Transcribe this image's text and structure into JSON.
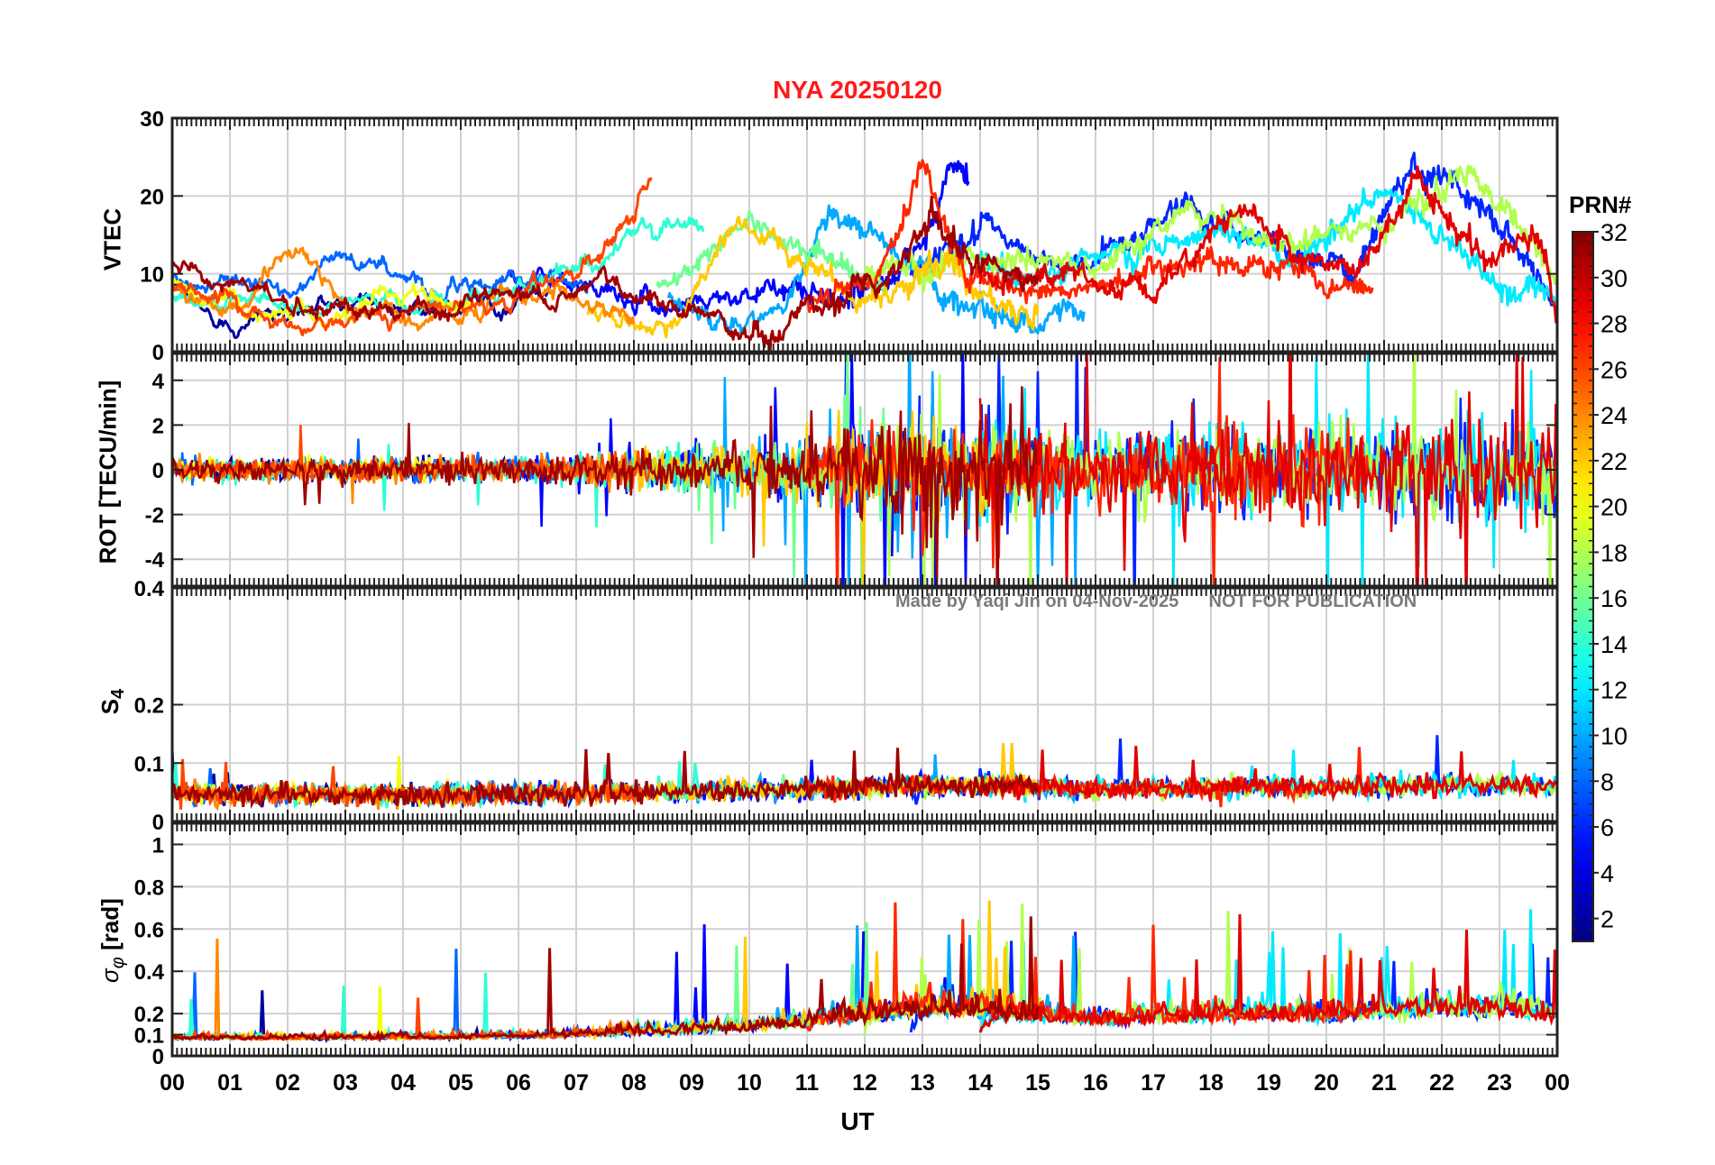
{
  "chart_data": {
    "type": "line",
    "title": "NYA   20250120",
    "xlabel": "UT",
    "x_range": [
      0,
      24
    ],
    "x_tick_labels": [
      "00",
      "01",
      "02",
      "03",
      "04",
      "05",
      "06",
      "07",
      "08",
      "09",
      "10",
      "11",
      "12",
      "13",
      "14",
      "15",
      "16",
      "17",
      "18",
      "19",
      "20",
      "21",
      "22",
      "23",
      "00"
    ],
    "credit_text": "Made by Yaqi Jin on 04-Nov-2025      NOT FOR PUBLICATION",
    "colorbar": {
      "title": "PRN#",
      "range": [
        1,
        32
      ],
      "tick_labels": [
        "2",
        "4",
        "6",
        "8",
        "10",
        "12",
        "14",
        "16",
        "18",
        "20",
        "22",
        "24",
        "26",
        "28",
        "30",
        "32"
      ],
      "colormap": "jet"
    },
    "panels": [
      {
        "name": "vtec",
        "ylabel": "VTEC",
        "ylim": [
          0,
          30
        ],
        "yticks": [
          0,
          10,
          20,
          30
        ],
        "ytick_labels": [
          "0",
          "10",
          "20",
          "30"
        ],
        "series": [
          {
            "prn": 2,
            "start": 0.0,
            "end": 6.5,
            "knots": [
              [
                0,
                8
              ],
              [
                0.8,
                4
              ],
              [
                2,
                5
              ],
              [
                3.4,
                7
              ],
              [
                4.8,
                5
              ],
              [
                6.5,
                8
              ]
            ]
          },
          {
            "prn": 5,
            "start": 5.8,
            "end": 13.8,
            "knots": [
              [
                5.8,
                10
              ],
              [
                7,
                8
              ],
              [
                8.5,
                6
              ],
              [
                10,
                8
              ],
              [
                11.5,
                7
              ],
              [
                13,
                12
              ],
              [
                13.5,
                24
              ],
              [
                13.8,
                22
              ]
            ]
          },
          {
            "prn": 6,
            "start": 12.8,
            "end": 24.0,
            "knots": [
              [
                12.8,
                10
              ],
              [
                14,
                16
              ],
              [
                15.5,
                10
              ],
              [
                17.5,
                19
              ],
              [
                19,
                14
              ],
              [
                20.5,
                11
              ],
              [
                21.5,
                25
              ],
              [
                22.5,
                20
              ],
              [
                23.5,
                12
              ],
              [
                24,
                7
              ]
            ]
          },
          {
            "prn": 8,
            "start": 0.0,
            "end": 7.2,
            "knots": [
              [
                0,
                9
              ],
              [
                2.2,
                8
              ],
              [
                3,
                13
              ],
              [
                4,
                9
              ],
              [
                5.2,
                8
              ],
              [
                6,
                10
              ],
              [
                7.2,
                9
              ]
            ]
          },
          {
            "prn": 10,
            "start": 8.6,
            "end": 15.8,
            "knots": [
              [
                8.6,
                6
              ],
              [
                9.5,
                3
              ],
              [
                10.5,
                5
              ],
              [
                11.5,
                18
              ],
              [
                12.5,
                13
              ],
              [
                13.2,
                9
              ],
              [
                14,
                5
              ],
              [
                15,
                4
              ],
              [
                15.8,
                6
              ]
            ]
          },
          {
            "prn": 12,
            "start": 14.0,
            "end": 24.0,
            "knots": [
              [
                14,
                12
              ],
              [
                15,
                9
              ],
              [
                16.5,
                13
              ],
              [
                18,
                16
              ],
              [
                19.5,
                12
              ],
              [
                21,
                20
              ],
              [
                22,
                15
              ],
              [
                23.2,
                8
              ],
              [
                24,
                6
              ]
            ]
          },
          {
            "prn": 14,
            "start": 0.0,
            "end": 9.2,
            "knots": [
              [
                0,
                7
              ],
              [
                1.8,
                6
              ],
              [
                3.5,
                6
              ],
              [
                5.5,
                7
              ],
              [
                7,
                10
              ],
              [
                8.2,
                16
              ],
              [
                9.2,
                16
              ]
            ]
          },
          {
            "prn": 16,
            "start": 8.4,
            "end": 12.4,
            "knots": [
              [
                8.4,
                8
              ],
              [
                9.2,
                12
              ],
              [
                10,
                17
              ],
              [
                11,
                14
              ],
              [
                12,
                9
              ],
              [
                12.4,
                7
              ]
            ]
          },
          {
            "prn": 18,
            "start": 12.0,
            "end": 24.0,
            "knots": [
              [
                12,
                10
              ],
              [
                14,
                12
              ],
              [
                16,
                11
              ],
              [
                17.8,
                18
              ],
              [
                19.5,
                14
              ],
              [
                21,
                17
              ],
              [
                22.5,
                23
              ],
              [
                23.5,
                15
              ],
              [
                24,
                9
              ]
            ]
          },
          {
            "prn": 20,
            "start": 0.0,
            "end": 5.2,
            "knots": [
              [
                0,
                9
              ],
              [
                1.5,
                5
              ],
              [
                3,
                4
              ],
              [
                4.2,
                8
              ],
              [
                5.2,
                6
              ]
            ]
          },
          {
            "prn": 22,
            "start": 7.2,
            "end": 15.0,
            "knots": [
              [
                7.2,
                5
              ],
              [
                8.6,
                3
              ],
              [
                9.8,
                17
              ],
              [
                11,
                11
              ],
              [
                12,
                6
              ],
              [
                13.5,
                12
              ],
              [
                14.5,
                6
              ],
              [
                15,
                4
              ]
            ]
          },
          {
            "prn": 24,
            "start": 0.0,
            "end": 8.0,
            "knots": [
              [
                0,
                8
              ],
              [
                1.2,
                5
              ],
              [
                2,
                14
              ],
              [
                3,
                5
              ],
              [
                5,
                5
              ],
              [
                6.5,
                7
              ],
              [
                8,
                6
              ]
            ]
          },
          {
            "prn": 26,
            "start": 0.0,
            "end": 8.3,
            "knots": [
              [
                0,
                9
              ],
              [
                2,
                4
              ],
              [
                4,
                5
              ],
              [
                6,
                7
              ],
              [
                7.4,
                11
              ],
              [
                8,
                18
              ],
              [
                8.3,
                22
              ]
            ]
          },
          {
            "prn": 27,
            "start": 11.0,
            "end": 20.8,
            "knots": [
              [
                11,
                6
              ],
              [
                12.2,
                9
              ],
              [
                13,
                24
              ],
              [
                13.8,
                9
              ],
              [
                15,
                7
              ],
              [
                16.5,
                9
              ],
              [
                17.8,
                12
              ],
              [
                19.5,
                10
              ],
              [
                20.8,
                8
              ]
            ]
          },
          {
            "prn": 29,
            "start": 14.0,
            "end": 24.0,
            "knots": [
              [
                14,
                10
              ],
              [
                15.8,
                9
              ],
              [
                17,
                7
              ],
              [
                18.5,
                20
              ],
              [
                19.5,
                13
              ],
              [
                20.5,
                10
              ],
              [
                21.6,
                22
              ],
              [
                22.8,
                12
              ],
              [
                23.6,
                15
              ],
              [
                24,
                5
              ]
            ]
          },
          {
            "prn": 31,
            "start": 0.0,
            "end": 15.0,
            "knots": [
              [
                0,
                11
              ],
              [
                2,
                6
              ],
              [
                4,
                5
              ],
              [
                6,
                7
              ],
              [
                7.5,
                9
              ],
              [
                9.5,
                4
              ],
              [
                10.5,
                0.5
              ],
              [
                11,
                6
              ],
              [
                12.5,
                10
              ],
              [
                13.2,
                17
              ],
              [
                14,
                11
              ],
              [
                15,
                10
              ]
            ]
          }
        ]
      },
      {
        "name": "rot",
        "ylabel": "ROT [TECU/min]",
        "ylim": [
          -5.2,
          5.2
        ],
        "yticks": [
          -4,
          -2,
          0,
          2,
          4
        ],
        "ytick_labels": [
          "-4",
          "-2",
          "0",
          "2",
          "4"
        ]
      },
      {
        "name": "s4",
        "ylabel": "S4",
        "ylim": [
          0,
          0.4
        ],
        "yticks": [
          0,
          0.1,
          0.2,
          0.4
        ],
        "ytick_labels": [
          "0",
          "0.1",
          "0.2",
          "0.4"
        ]
      },
      {
        "name": "sigma_phi",
        "ylabel": "σφ [rad]",
        "ylim": [
          0,
          1.1
        ],
        "yticks": [
          0,
          0.1,
          0.2,
          0.4,
          0.6,
          0.8,
          1
        ],
        "ytick_labels": [
          "0",
          "0.1",
          "0.2",
          "0.4",
          "0.6",
          "0.8",
          "1"
        ]
      }
    ],
    "activity_profile": [
      [
        0,
        0.5
      ],
      [
        6,
        0.6
      ],
      [
        8,
        1.0
      ],
      [
        10,
        1.3
      ],
      [
        11,
        1.7
      ],
      [
        13,
        2.6
      ],
      [
        14,
        2.4
      ],
      [
        16,
        1.6
      ],
      [
        18,
        2.2
      ],
      [
        20,
        2.0
      ],
      [
        22,
        2.6
      ],
      [
        24,
        2.2
      ]
    ]
  }
}
